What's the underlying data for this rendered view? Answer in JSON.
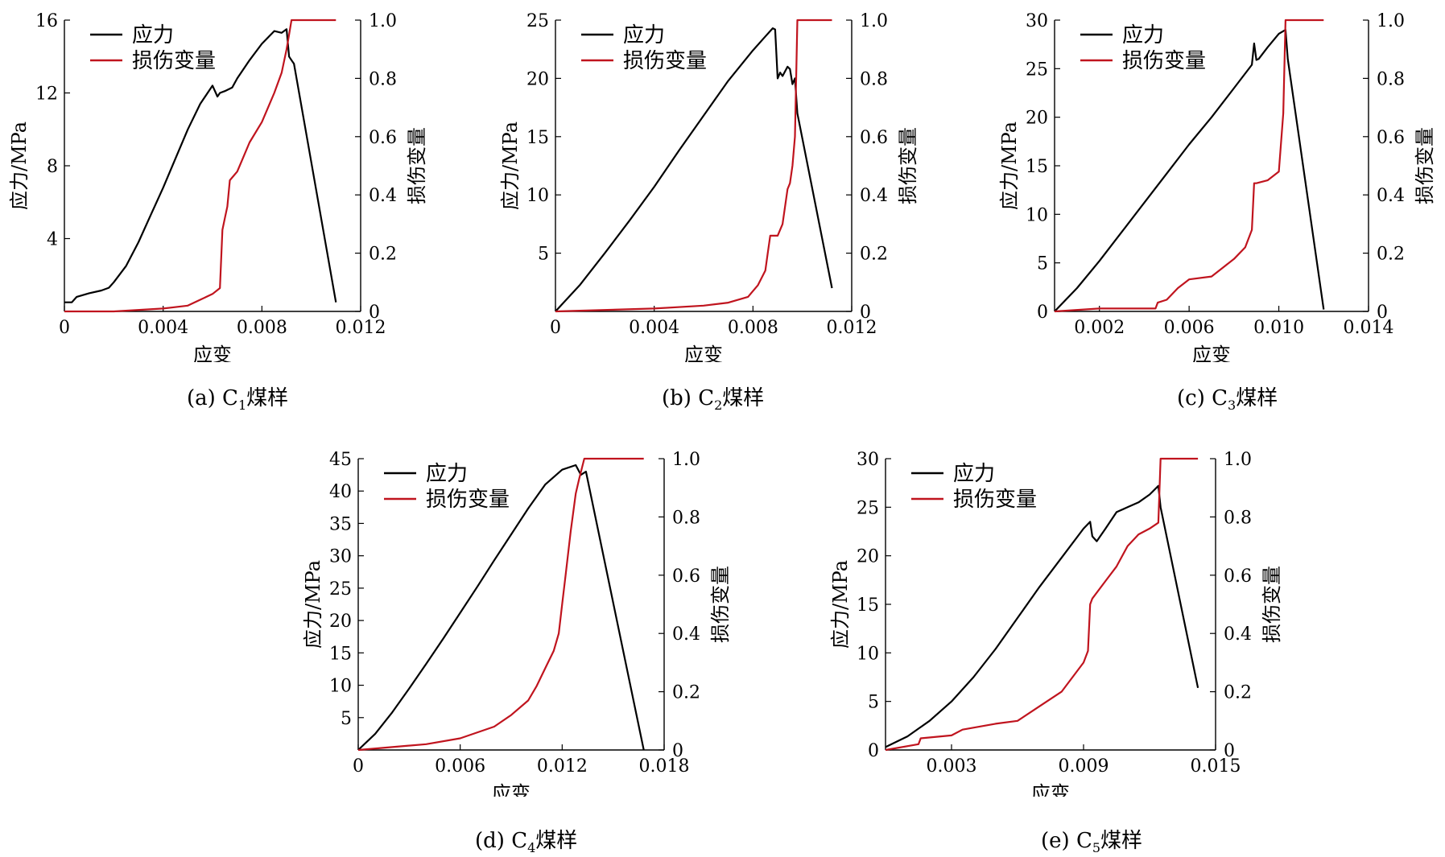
{
  "chart_data": [
    {
      "type": "line",
      "caption": {
        "prefix": "(a)  C",
        "sub": "1",
        "suffix": "煤样"
      },
      "xlabel": "应变",
      "ylabel_left": "应力/MPa",
      "ylabel_right": "损伤变量",
      "xlim": [
        0,
        0.012
      ],
      "ylim_left": [
        0,
        16
      ],
      "ylim_right": [
        0,
        1.0
      ],
      "xticks": [
        "0",
        "0.004",
        "0.008",
        "0.012"
      ],
      "yticks_left": [
        "4",
        "8",
        "12",
        "16"
      ],
      "yticks_right": [
        "0",
        "0.2",
        "0.4",
        "0.6",
        "0.8",
        "1.0"
      ],
      "legend": {
        "position": "top-left",
        "entries": [
          "应力",
          "损伤变量"
        ]
      },
      "colors": {
        "stress": "#000000",
        "damage": "#c0141e"
      },
      "series": [
        {
          "name": "应力",
          "axis": "left",
          "x": [
            0,
            0.0003,
            0.0005,
            0.001,
            0.0015,
            0.0018,
            0.002,
            0.0025,
            0.003,
            0.0035,
            0.004,
            0.0045,
            0.005,
            0.0055,
            0.006,
            0.0062,
            0.0063,
            0.0065,
            0.0068,
            0.007,
            0.0075,
            0.008,
            0.0085,
            0.0088,
            0.009,
            0.0091,
            0.0092,
            0.0093,
            0.011
          ],
          "y": [
            0.5,
            0.5,
            0.8,
            1.0,
            1.15,
            1.3,
            1.6,
            2.5,
            3.8,
            5.3,
            6.8,
            8.4,
            10.0,
            11.4,
            12.4,
            11.8,
            12.0,
            12.1,
            12.3,
            12.8,
            13.8,
            14.7,
            15.4,
            15.3,
            15.5,
            14.0,
            13.8,
            13.6,
            0.5
          ]
        },
        {
          "name": "损伤变量",
          "axis": "right",
          "x": [
            0,
            0.002,
            0.004,
            0.005,
            0.0055,
            0.006,
            0.0063,
            0.0064,
            0.0065,
            0.0066,
            0.0067,
            0.0068,
            0.007,
            0.0072,
            0.0075,
            0.008,
            0.0085,
            0.0088,
            0.009,
            0.0091,
            0.0092,
            0.011
          ],
          "y": [
            0,
            0.0,
            0.01,
            0.02,
            0.04,
            0.06,
            0.08,
            0.28,
            0.32,
            0.36,
            0.45,
            0.46,
            0.48,
            0.52,
            0.58,
            0.65,
            0.75,
            0.82,
            0.9,
            0.95,
            1.0,
            1.0
          ]
        }
      ]
    },
    {
      "type": "line",
      "caption": {
        "prefix": "(b)  C",
        "sub": "2",
        "suffix": "煤样"
      },
      "xlabel": "应变",
      "ylabel_left": "应力/MPa",
      "ylabel_right": "损伤变量",
      "xlim": [
        0,
        0.012
      ],
      "ylim_left": [
        0,
        25
      ],
      "ylim_right": [
        0,
        1.0
      ],
      "xticks": [
        "0",
        "0.004",
        "0.008",
        "0.012"
      ],
      "yticks_left": [
        "5",
        "10",
        "15",
        "20",
        "25"
      ],
      "yticks_right": [
        "0",
        "0.2",
        "0.4",
        "0.6",
        "0.8",
        "1.0"
      ],
      "legend": {
        "position": "top-left",
        "entries": [
          "应力",
          "损伤变量"
        ]
      },
      "colors": {
        "stress": "#000000",
        "damage": "#c0141e"
      },
      "series": [
        {
          "name": "应力",
          "axis": "left",
          "x": [
            0,
            0.001,
            0.002,
            0.003,
            0.004,
            0.005,
            0.006,
            0.007,
            0.008,
            0.0085,
            0.0088,
            0.0089,
            0.009,
            0.0091,
            0.0092,
            0.0094,
            0.0095,
            0.0096,
            0.0097,
            0.0098,
            0.0112
          ],
          "y": [
            0,
            2.3,
            5.0,
            7.8,
            10.7,
            13.8,
            16.8,
            19.8,
            22.4,
            23.6,
            24.3,
            24.2,
            20.0,
            20.5,
            20.2,
            21.0,
            20.8,
            19.5,
            20.0,
            17.0,
            2.0
          ]
        },
        {
          "name": "损伤变量",
          "axis": "right",
          "x": [
            0,
            0.004,
            0.006,
            0.007,
            0.0078,
            0.008,
            0.0082,
            0.0085,
            0.0086,
            0.0087,
            0.009,
            0.0092,
            0.0094,
            0.0095,
            0.0096,
            0.0097,
            0.0098,
            0.0112
          ],
          "y": [
            0,
            0.01,
            0.02,
            0.03,
            0.05,
            0.07,
            0.09,
            0.14,
            0.2,
            0.26,
            0.26,
            0.3,
            0.42,
            0.44,
            0.5,
            0.6,
            1.0,
            1.0
          ]
        }
      ]
    },
    {
      "type": "line",
      "caption": {
        "prefix": "(c)  C",
        "sub": "3",
        "suffix": "煤样"
      },
      "xlabel": "应变",
      "ylabel_left": "应力/MPa",
      "ylabel_right": "损伤变量",
      "xlim": [
        0,
        0.014
      ],
      "ylim_left": [
        0,
        30
      ],
      "ylim_right": [
        0,
        1.0
      ],
      "xticks": [
        "0.002",
        "0.006",
        "0.010",
        "0.014"
      ],
      "yticks_left": [
        "0",
        "5",
        "10",
        "15",
        "20",
        "25",
        "30"
      ],
      "yticks_right": [
        "0",
        "0.2",
        "0.4",
        "0.6",
        "0.8",
        "1.0"
      ],
      "legend": {
        "position": "top-left",
        "entries": [
          "应力",
          "损伤变量"
        ]
      },
      "colors": {
        "stress": "#000000",
        "damage": "#c0141e"
      },
      "series": [
        {
          "name": "应力",
          "axis": "left",
          "x": [
            0,
            0.001,
            0.002,
            0.003,
            0.004,
            0.005,
            0.006,
            0.007,
            0.008,
            0.0088,
            0.0089,
            0.009,
            0.0091,
            0.0095,
            0.01,
            0.0103,
            0.0104,
            0.012
          ],
          "y": [
            0,
            2.4,
            5.2,
            8.2,
            11.2,
            14.2,
            17.2,
            20.0,
            23.0,
            25.4,
            27.6,
            25.9,
            26.0,
            27.2,
            28.6,
            29.0,
            26.0,
            0.2
          ]
        },
        {
          "name": "损伤变量",
          "axis": "right",
          "x": [
            0,
            0.002,
            0.0045,
            0.0046,
            0.005,
            0.0055,
            0.006,
            0.007,
            0.0075,
            0.008,
            0.0085,
            0.0088,
            0.0089,
            0.009,
            0.0095,
            0.01,
            0.0102,
            0.0103,
            0.012
          ],
          "y": [
            0,
            0.01,
            0.01,
            0.03,
            0.04,
            0.08,
            0.11,
            0.12,
            0.15,
            0.18,
            0.22,
            0.28,
            0.44,
            0.44,
            0.45,
            0.48,
            0.68,
            1.0,
            1.0
          ]
        }
      ]
    },
    {
      "type": "line",
      "caption": {
        "prefix": "(d)  C",
        "sub": "4",
        "suffix": "煤样"
      },
      "xlabel": "应变",
      "ylabel_left": "应力/MPa",
      "ylabel_right": "损伤变量",
      "xlim": [
        0,
        0.018
      ],
      "ylim_left": [
        0,
        45
      ],
      "ylim_right": [
        0,
        1.0
      ],
      "xticks": [
        "0",
        "0.006",
        "0.012",
        "0.018"
      ],
      "yticks_left": [
        "5",
        "10",
        "15",
        "20",
        "25",
        "30",
        "35",
        "40",
        "45"
      ],
      "yticks_right": [
        "0",
        "0.2",
        "0.4",
        "0.6",
        "0.8",
        "1.0"
      ],
      "legend": {
        "position": "top-left",
        "entries": [
          "应力",
          "损伤变量"
        ]
      },
      "colors": {
        "stress": "#000000",
        "damage": "#c0141e"
      },
      "series": [
        {
          "name": "应力",
          "axis": "left",
          "x": [
            0,
            0.001,
            0.002,
            0.003,
            0.004,
            0.005,
            0.006,
            0.007,
            0.008,
            0.009,
            0.01,
            0.011,
            0.012,
            0.0128,
            0.0131,
            0.0134,
            0.0168
          ],
          "y": [
            0,
            2.5,
            5.8,
            9.5,
            13.3,
            17.2,
            21.2,
            25.2,
            29.3,
            33.3,
            37.3,
            41.0,
            43.3,
            44.0,
            42.5,
            43.0,
            0
          ]
        },
        {
          "name": "损伤变量",
          "axis": "right",
          "x": [
            0,
            0.002,
            0.004,
            0.006,
            0.008,
            0.009,
            0.01,
            0.0105,
            0.011,
            0.0115,
            0.0118,
            0.012,
            0.0122,
            0.0125,
            0.0128,
            0.013,
            0.0133,
            0.0168
          ],
          "y": [
            0,
            0.01,
            0.02,
            0.04,
            0.08,
            0.12,
            0.17,
            0.22,
            0.28,
            0.34,
            0.4,
            0.5,
            0.6,
            0.75,
            0.88,
            0.93,
            1.0,
            1.0
          ]
        }
      ]
    },
    {
      "type": "line",
      "caption": {
        "prefix": "(e)  C",
        "sub": "5",
        "suffix": "煤样"
      },
      "xlabel": "应变",
      "ylabel_left": "应力/MPa",
      "ylabel_right": "损伤变量",
      "xlim": [
        0,
        0.015
      ],
      "ylim_left": [
        0,
        30
      ],
      "ylim_right": [
        0,
        1.0
      ],
      "xticks": [
        "0.003",
        "0.009",
        "0.015"
      ],
      "yticks_left": [
        "0",
        "5",
        "10",
        "15",
        "20",
        "25",
        "30"
      ],
      "yticks_right": [
        "0",
        "0.2",
        "0.4",
        "0.6",
        "0.8",
        "1.0"
      ],
      "legend": {
        "position": "top-left",
        "entries": [
          "应力",
          "损伤变量"
        ]
      },
      "colors": {
        "stress": "#000000",
        "damage": "#c0141e"
      },
      "series": [
        {
          "name": "应力",
          "axis": "left",
          "x": [
            0,
            0.001,
            0.002,
            0.003,
            0.004,
            0.005,
            0.006,
            0.007,
            0.008,
            0.009,
            0.0093,
            0.0094,
            0.0096,
            0.01,
            0.0105,
            0.011,
            0.0115,
            0.012,
            0.0124,
            0.0125,
            0.0142
          ],
          "y": [
            0.3,
            1.4,
            3.0,
            5.0,
            7.5,
            10.4,
            13.6,
            16.8,
            19.8,
            22.8,
            23.5,
            22.0,
            21.5,
            22.8,
            24.5,
            25.0,
            25.5,
            26.3,
            27.2,
            25.0,
            6.4
          ]
        },
        {
          "name": "损伤变量",
          "axis": "right",
          "x": [
            0,
            0.0015,
            0.0016,
            0.003,
            0.0035,
            0.005,
            0.006,
            0.007,
            0.008,
            0.009,
            0.0092,
            0.0093,
            0.0094,
            0.01,
            0.0105,
            0.011,
            0.0115,
            0.012,
            0.0124,
            0.0125,
            0.0142
          ],
          "y": [
            0,
            0.02,
            0.04,
            0.05,
            0.07,
            0.09,
            0.1,
            0.15,
            0.2,
            0.3,
            0.34,
            0.5,
            0.52,
            0.58,
            0.63,
            0.7,
            0.74,
            0.76,
            0.78,
            1.0,
            1.0
          ]
        }
      ]
    }
  ]
}
